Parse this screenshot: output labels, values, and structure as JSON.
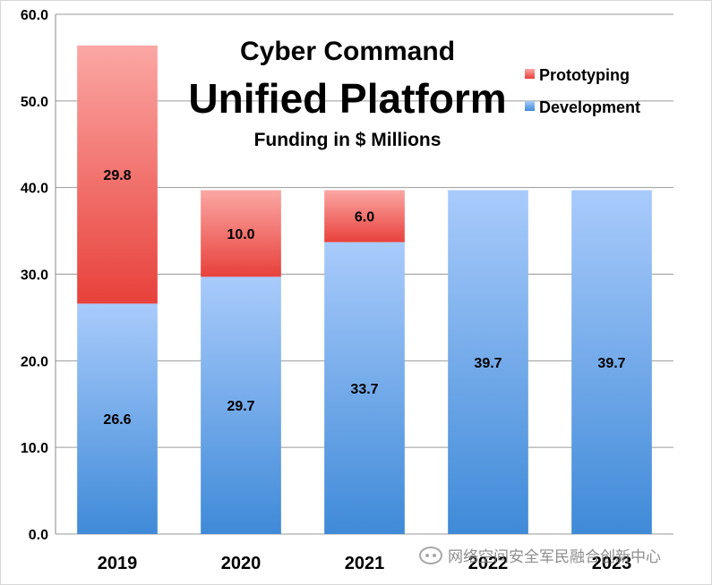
{
  "chart_data": {
    "type": "bar",
    "stacked": true,
    "title": "Cyber Command",
    "title_main": "Unified Platform",
    "subtitle": "Funding in $ Millions",
    "categories": [
      "2019",
      "2020",
      "2021",
      "2022",
      "2023"
    ],
    "series": [
      {
        "name": "Development",
        "values": [
          26.6,
          29.7,
          33.7,
          39.7,
          39.7
        ],
        "labels": [
          "26.6",
          "29.7",
          "33.7",
          "39.7",
          "39.7"
        ],
        "color": "#5b9be0"
      },
      {
        "name": "Prototyping",
        "values": [
          29.8,
          10.0,
          6.0,
          0,
          0
        ],
        "labels": [
          "29.8",
          "10.0",
          "6.0",
          "",
          ""
        ],
        "color": "#ee5650"
      }
    ],
    "ylim": [
      0,
      60
    ],
    "yticks": [
      0,
      10,
      20,
      30,
      40,
      50,
      60
    ],
    "ytick_labels": [
      "0.0",
      "10.0",
      "20.0",
      "30.0",
      "40.0",
      "50.0",
      "60.0"
    ],
    "grid": true,
    "legend_position": "top-right",
    "xlabel": "",
    "ylabel": ""
  },
  "watermark": {
    "text": "网络空间安全军民融合创新中心",
    "icon": "wechat-icon"
  }
}
